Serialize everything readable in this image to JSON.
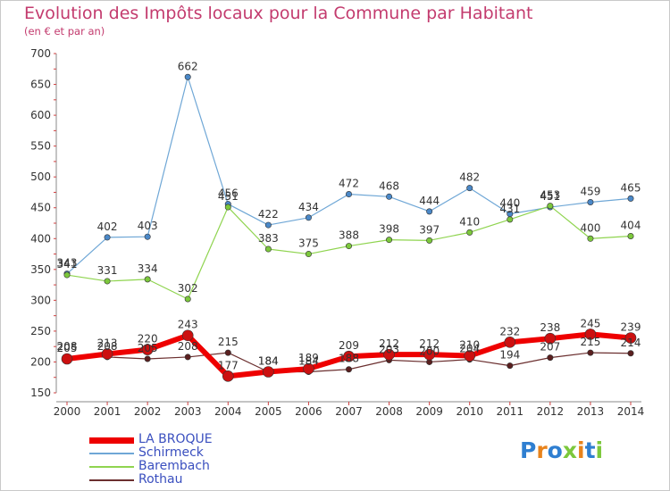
{
  "title": "Evolution des Impôts locaux pour la Commune par Habitant",
  "subtitle": "(en € et par an)",
  "logo": "Proxiti",
  "chart_data": {
    "type": "line",
    "x": [
      "2000",
      "2001",
      "2002",
      "2003",
      "2004",
      "2005",
      "2006",
      "2007",
      "2008",
      "2009",
      "2010",
      "2011",
      "2012",
      "2013",
      "2014"
    ],
    "ylim": [
      150,
      700
    ],
    "yticks": [
      150,
      200,
      250,
      300,
      350,
      400,
      450,
      500,
      550,
      600,
      650,
      700
    ],
    "grid": false,
    "legend_position": "bottom-left",
    "series": [
      {
        "name": "LA BROQUE",
        "color": "#ee0000",
        "values": [
          205,
          213,
          220,
          243,
          177,
          184,
          189,
          209,
          212,
          212,
          210,
          232,
          238,
          245,
          239
        ]
      },
      {
        "name": "Schirmeck",
        "color": "#6fa7d6",
        "values": [
          343,
          402,
          403,
          662,
          456,
          422,
          434,
          472,
          468,
          444,
          482,
          440,
          451,
          459,
          465
        ]
      },
      {
        "name": "Barembach",
        "color": "#8fd44f",
        "values": [
          341,
          331,
          334,
          302,
          451,
          383,
          375,
          388,
          398,
          397,
          410,
          431,
          453,
          400,
          404
        ]
      },
      {
        "name": "Rothau",
        "color": "#6b2f2f",
        "values": [
          208,
          208,
          205,
          208,
          215,
          184,
          184,
          188,
          203,
          200,
          204,
          194,
          207,
          215,
          214
        ]
      }
    ]
  }
}
